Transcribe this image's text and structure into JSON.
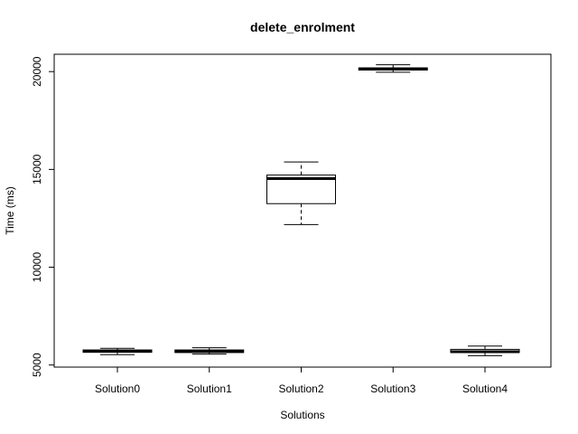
{
  "chart_data": {
    "type": "box",
    "title": "delete_enrolment",
    "xlabel": "Solutions",
    "ylabel": "Time (ms)",
    "ylim": [
      5000,
      21000
    ],
    "yticks": [
      5000,
      10000,
      15000,
      20000
    ],
    "categories": [
      "Solution0",
      "Solution1",
      "Solution2",
      "Solution3",
      "Solution4"
    ],
    "boxes": [
      {
        "name": "Solution0",
        "min": 5530,
        "q1": 5650,
        "median": 5700,
        "q3": 5770,
        "max": 5850
      },
      {
        "name": "Solution1",
        "min": 5560,
        "q1": 5640,
        "median": 5690,
        "q3": 5770,
        "max": 5880
      },
      {
        "name": "Solution2",
        "min": 12180,
        "q1": 13250,
        "median": 14530,
        "q3": 14710,
        "max": 15380
      },
      {
        "name": "Solution3",
        "min": 19970,
        "q1": 20080,
        "median": 20140,
        "q3": 20190,
        "max": 20350
      },
      {
        "name": "Solution4",
        "min": 5480,
        "q1": 5640,
        "median": 5680,
        "q3": 5800,
        "max": 5970
      }
    ],
    "grid": false,
    "legend": "none"
  }
}
